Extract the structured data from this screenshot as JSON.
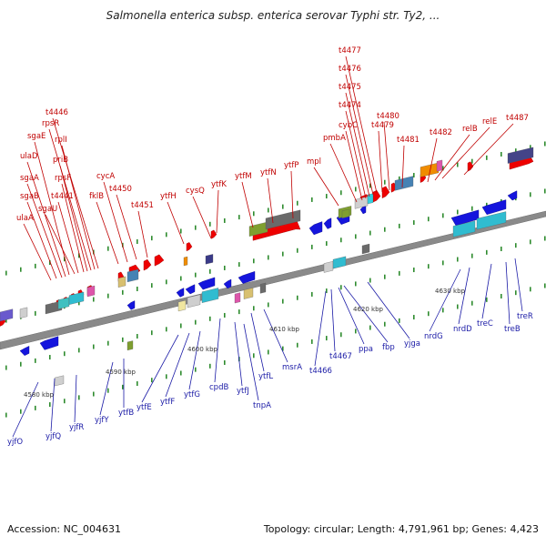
{
  "title": "Salmonella enterica subsp. enterica serovar Typhi str. Ty2, ...",
  "footer": {
    "accession": "Accession: NC_004631",
    "summary": "Topology: circular; Length: 4,791,961 bp; Genes: 4,423"
  },
  "colors": {
    "backbone": "#808080",
    "forward_gene": "#ee0000",
    "reverse_gene": "#1515dd",
    "forward_label": "#c00000",
    "reverse_label": "#1a1aa6",
    "tick_green": "#2e8b2e"
  },
  "kbp_marks": [
    "4580 kbp",
    "4590 kbp",
    "4600 kbp",
    "4610 kbp",
    "4620 kbp",
    "4630 kbp"
  ],
  "forward_genes": [
    "ulaA",
    "sgaB",
    "sgaA",
    "ulaD",
    "sgaE",
    "sgaU",
    "t4441",
    "rpsF",
    "priB",
    "rpsR",
    "rplI",
    "t4446",
    "fklB",
    "cycA",
    "t4450",
    "t4451",
    "ytfH",
    "cysQ",
    "ytfK",
    "ytfM",
    "ytfN",
    "ytfP",
    "mpl",
    "pmbA",
    "cybC",
    "t4474",
    "t4475",
    "t4476",
    "t4477",
    "t4479",
    "t4480",
    "t4481",
    "t4482",
    "relB",
    "relE",
    "t4487"
  ],
  "reverse_genes": [
    "yjfO",
    "yjfQ",
    "yjfR",
    "yjfY",
    "ytfB",
    "ytfE",
    "ytfF",
    "ytfG",
    "cpdB",
    "ytfJ",
    "tnpA",
    "ytfL",
    "msrA",
    "t4466",
    "t4467",
    "ppa",
    "fbp",
    "yjga",
    "nrdG",
    "nrdD",
    "treC",
    "treB",
    "treR"
  ]
}
